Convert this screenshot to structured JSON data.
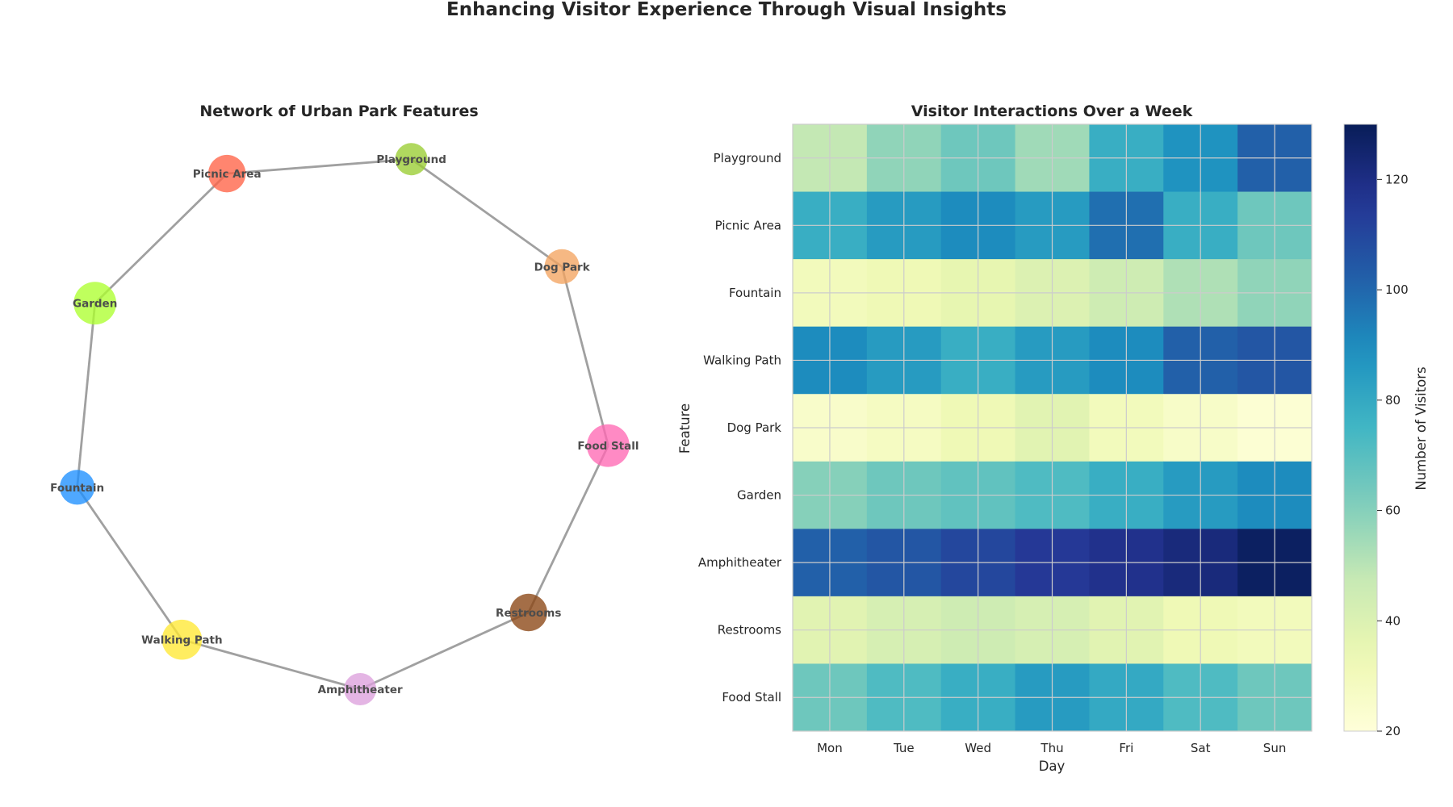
{
  "figure": {
    "title": "Enhancing Visitor Experience Through Visual Insights"
  },
  "network": {
    "title": "Network of Urban Park Features",
    "nodes": [
      {
        "id": "Playground",
        "color": "#9ACD32"
      },
      {
        "id": "Picnic Area",
        "color": "#FF6347"
      },
      {
        "id": "Garden",
        "color": "#ADFF2F"
      },
      {
        "id": "Fountain",
        "color": "#1E90FF"
      },
      {
        "id": "Walking Path",
        "color": "#FFE833"
      },
      {
        "id": "Amphitheater",
        "color": "#DDA0DD"
      },
      {
        "id": "Restrooms",
        "color": "#8B4513"
      },
      {
        "id": "Food Stall",
        "color": "#FF69B4"
      },
      {
        "id": "Dog Park",
        "color": "#F4A460"
      }
    ],
    "edges": [
      [
        "Playground",
        "Picnic Area"
      ],
      [
        "Picnic Area",
        "Garden"
      ],
      [
        "Garden",
        "Fountain"
      ],
      [
        "Fountain",
        "Walking Path"
      ],
      [
        "Walking Path",
        "Amphitheater"
      ],
      [
        "Amphitheater",
        "Restrooms"
      ],
      [
        "Restrooms",
        "Food Stall"
      ],
      [
        "Food Stall",
        "Dog Park"
      ],
      [
        "Dog Park",
        "Playground"
      ]
    ],
    "edge_color": "#a0a0a0"
  },
  "chart_data": {
    "type": "heatmap",
    "title": "Visitor Interactions Over a Week",
    "xlabel": "Day",
    "ylabel": "Feature",
    "x": [
      "Mon",
      "Tue",
      "Wed",
      "Thu",
      "Fri",
      "Sat",
      "Sun"
    ],
    "y": [
      "Playground",
      "Picnic Area",
      "Fountain",
      "Walking Path",
      "Dog Park",
      "Garden",
      "Amphitheater",
      "Restrooms",
      "Food Stall"
    ],
    "values": [
      [
        48,
        58,
        65,
        55,
        78,
        88,
        102
      ],
      [
        78,
        85,
        90,
        85,
        98,
        78,
        65
      ],
      [
        30,
        32,
        36,
        40,
        45,
        52,
        58
      ],
      [
        90,
        85,
        78,
        85,
        90,
        102,
        105
      ],
      [
        25,
        28,
        32,
        38,
        30,
        26,
        22
      ],
      [
        60,
        65,
        68,
        72,
        78,
        85,
        90
      ],
      [
        102,
        105,
        110,
        115,
        118,
        122,
        128
      ],
      [
        38,
        42,
        45,
        42,
        38,
        32,
        30
      ],
      [
        65,
        72,
        78,
        85,
        80,
        72,
        65
      ]
    ],
    "colormap": "YlGnBu",
    "vmin": 20,
    "vmax": 130,
    "colorbar": {
      "label": "Number of Visitors",
      "ticks": [
        20,
        40,
        60,
        80,
        100,
        120
      ]
    },
    "grid": true
  }
}
